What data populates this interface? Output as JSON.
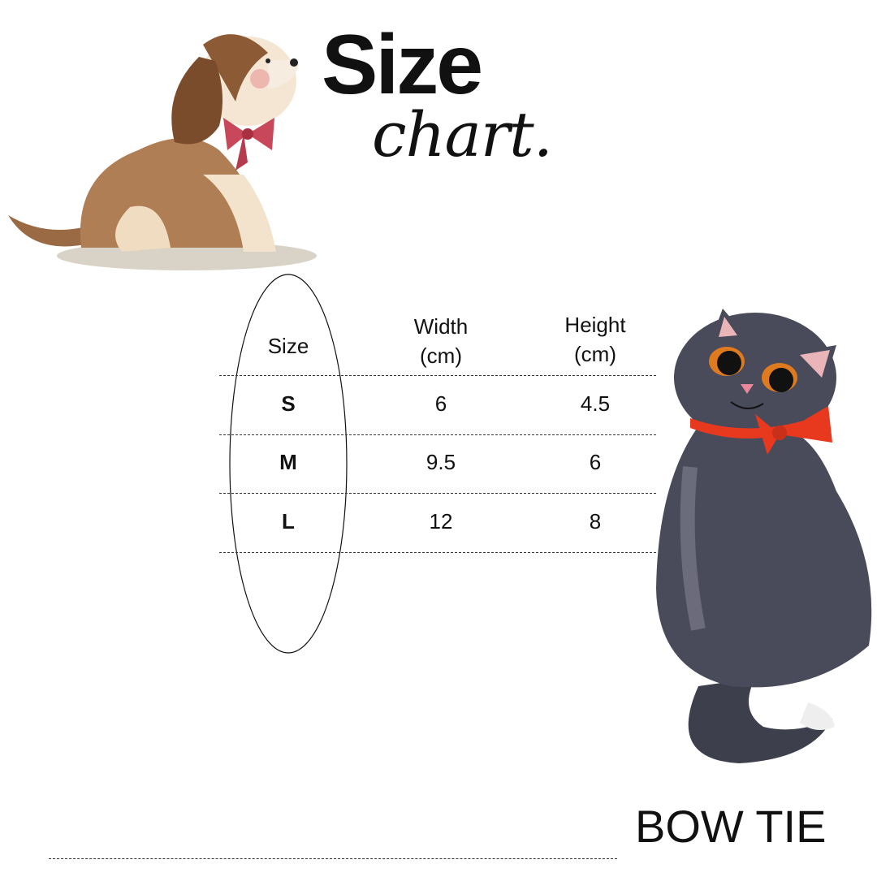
{
  "title": {
    "line1": "Size",
    "line2": "chart."
  },
  "table": {
    "headers": [
      {
        "line1": "Size",
        "line2": ""
      },
      {
        "line1": "Width",
        "line2": "(cm)"
      },
      {
        "line1": "Height",
        "line2": "(cm)"
      }
    ],
    "rows": [
      {
        "size": "S",
        "width": "6",
        "height": "4.5"
      },
      {
        "size": "M",
        "width": "9.5",
        "height": "6"
      },
      {
        "size": "L",
        "width": "12",
        "height": "8"
      }
    ]
  },
  "footer": {
    "product": "BOW TIE"
  },
  "illustrations": {
    "dog": "dog-with-bow-icon",
    "cat": "cat-with-bow-icon"
  },
  "colors": {
    "text": "#111111",
    "dog_bow": "#c8475a",
    "cat_bow": "#e8391f",
    "cat_fur": "#3e3f4c",
    "dog_fur": "#a8744a"
  }
}
